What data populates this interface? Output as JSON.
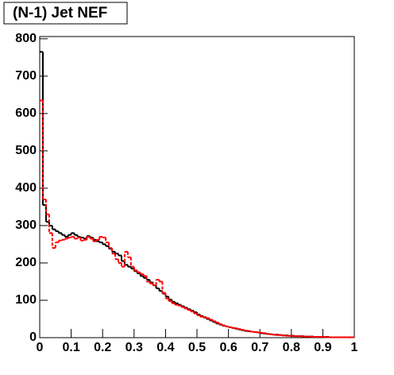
{
  "chart_data": {
    "type": "histogram",
    "title": "(N-1) Jet NEF",
    "bins": [
      0,
      0.01,
      0.02,
      0.03,
      0.04,
      0.05,
      0.06,
      0.07,
      0.08,
      0.09,
      0.1,
      0.11,
      0.12,
      0.13,
      0.14,
      0.15,
      0.16,
      0.17,
      0.18,
      0.19,
      0.2,
      0.21,
      0.22,
      0.23,
      0.24,
      0.25,
      0.26,
      0.27,
      0.28,
      0.29,
      0.3,
      0.31,
      0.32,
      0.33,
      0.34,
      0.35,
      0.36,
      0.37,
      0.38,
      0.39,
      0.4,
      0.41,
      0.42,
      0.43,
      0.44,
      0.45,
      0.46,
      0.47,
      0.48,
      0.49,
      0.5,
      0.51,
      0.52,
      0.53,
      0.54,
      0.55,
      0.56,
      0.57,
      0.58,
      0.59,
      0.6,
      0.61,
      0.62,
      0.63,
      0.64,
      0.65,
      0.66,
      0.67,
      0.68,
      0.69,
      0.7,
      0.71,
      0.72,
      0.73,
      0.74,
      0.75,
      0.76,
      0.77,
      0.78,
      0.79,
      0.8,
      0.81,
      0.82,
      0.83,
      0.84,
      0.85,
      0.86,
      0.87,
      0.88,
      0.89,
      0.9,
      0.91,
      0.92,
      0.93,
      0.94,
      0.95,
      0.96,
      0.97,
      0.98,
      0.99,
      1
    ],
    "series": [
      {
        "color": "#000000",
        "dashed": false,
        "values": [
          765,
          355,
          310,
          300,
          290,
          285,
          280,
          275,
          270,
          275,
          280,
          275,
          270,
          268,
          265,
          272,
          268,
          262,
          258,
          255,
          250,
          245,
          238,
          230,
          225,
          220,
          205,
          195,
          190,
          185,
          178,
          172,
          165,
          160,
          155,
          148,
          140,
          132,
          125,
          118,
          110,
          102,
          96,
          92,
          88,
          84,
          80,
          76,
          72,
          68,
          62,
          58,
          54,
          50,
          46,
          42,
          38,
          35,
          32,
          30,
          28,
          26,
          24,
          22,
          20,
          18,
          17,
          16,
          15,
          14,
          12,
          11,
          10,
          9,
          8,
          8,
          7,
          6,
          6,
          5,
          5,
          4,
          4,
          4,
          3,
          3,
          3,
          2,
          2,
          2,
          2,
          2,
          1,
          1,
          1,
          1,
          1,
          1,
          1,
          1
        ]
      },
      {
        "color": "#ff0000",
        "dashed": true,
        "values": [
          635,
          370,
          330,
          280,
          240,
          255,
          260,
          262,
          265,
          268,
          270,
          265,
          268,
          260,
          262,
          270,
          265,
          258,
          262,
          270,
          268,
          255,
          240,
          225,
          210,
          200,
          190,
          230,
          215,
          190,
          180,
          175,
          170,
          165,
          150,
          145,
          140,
          155,
          150,
          120,
          105,
          98,
          92,
          88,
          86,
          82,
          78,
          74,
          70,
          65,
          60,
          56,
          55,
          52,
          48,
          44,
          40,
          36,
          33,
          30,
          28,
          26,
          25,
          23,
          21,
          19,
          18,
          16,
          15,
          14,
          13,
          12,
          10,
          9,
          8,
          7,
          7,
          6,
          5,
          5,
          4,
          4,
          4,
          3,
          3,
          3,
          2,
          2,
          2,
          2,
          2,
          1,
          1,
          1,
          1,
          1,
          1,
          1,
          1,
          1
        ]
      }
    ],
    "xlim": [
      0,
      1
    ],
    "xticks": [
      0,
      0.1,
      0.2,
      0.3,
      0.4,
      0.5,
      0.6,
      0.7,
      0.8,
      0.9,
      1
    ],
    "ylim": [
      0,
      806
    ],
    "yticks": [
      0,
      100,
      200,
      300,
      400,
      500,
      600,
      700,
      800
    ]
  }
}
